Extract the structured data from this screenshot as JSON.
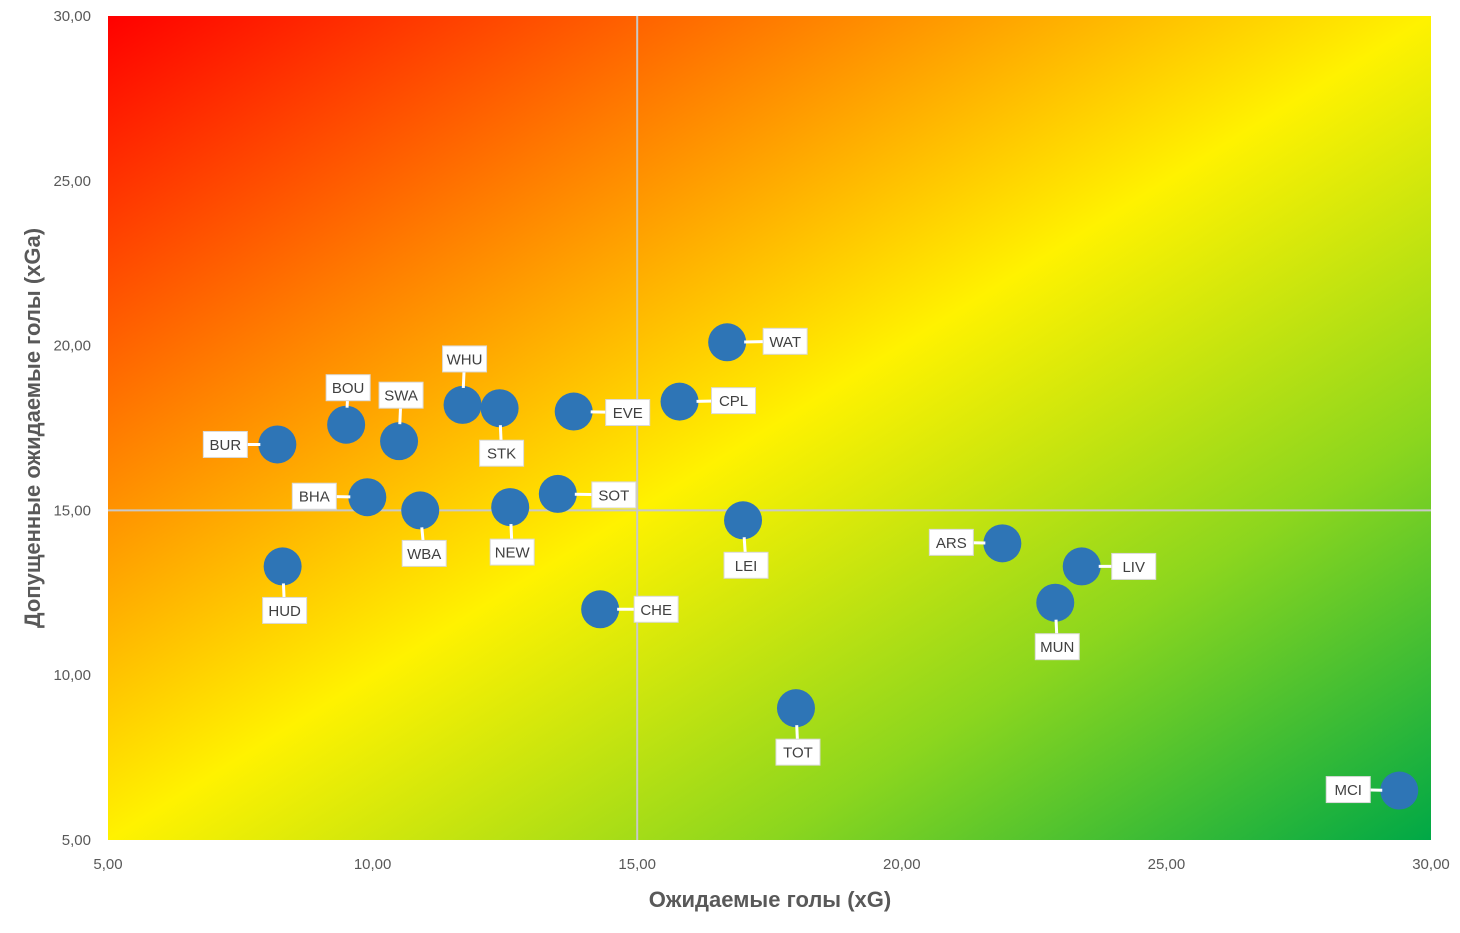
{
  "chart_data": {
    "type": "scatter",
    "xlabel": "Ожидаемые голы (xG)",
    "ylabel": "Допущенные ожидаемые голы (xGa)",
    "xlim": [
      5,
      30
    ],
    "ylim": [
      5,
      30
    ],
    "x_ticks": [
      "5,00",
      "10,00",
      "15,00",
      "20,00",
      "25,00",
      "30,00"
    ],
    "y_ticks": [
      "5,00",
      "10,00",
      "15,00",
      "20,00",
      "25,00",
      "30,00"
    ],
    "quadrant_lines": {
      "x": 15,
      "y": 15
    },
    "background": "diagonal gradient from red (top-left) through yellow to green (bottom-right)",
    "marker_color": "#2E75B6",
    "points": [
      {
        "label": "BUR",
        "x": 8.2,
        "y": 17.0
      },
      {
        "label": "BOU",
        "x": 9.5,
        "y": 17.6
      },
      {
        "label": "SWA",
        "x": 10.5,
        "y": 17.1
      },
      {
        "label": "WHU",
        "x": 11.7,
        "y": 18.2
      },
      {
        "label": "STK",
        "x": 12.4,
        "y": 18.1
      },
      {
        "label": "EVE",
        "x": 13.8,
        "y": 18.0
      },
      {
        "label": "CPL",
        "x": 15.8,
        "y": 18.3
      },
      {
        "label": "WAT",
        "x": 16.7,
        "y": 20.1
      },
      {
        "label": "BHA",
        "x": 9.9,
        "y": 15.4
      },
      {
        "label": "WBA",
        "x": 10.9,
        "y": 15.0
      },
      {
        "label": "NEW",
        "x": 12.6,
        "y": 15.1
      },
      {
        "label": "SOT",
        "x": 13.5,
        "y": 15.5
      },
      {
        "label": "HUD",
        "x": 8.3,
        "y": 13.3
      },
      {
        "label": "CHE",
        "x": 14.3,
        "y": 12.0
      },
      {
        "label": "LEI",
        "x": 17.0,
        "y": 14.7
      },
      {
        "label": "ARS",
        "x": 21.9,
        "y": 14.0
      },
      {
        "label": "LIV",
        "x": 23.4,
        "y": 13.3
      },
      {
        "label": "MUN",
        "x": 22.9,
        "y": 12.2
      },
      {
        "label": "TOT",
        "x": 18.0,
        "y": 9.0
      },
      {
        "label": "MCI",
        "x": 29.4,
        "y": 6.5
      }
    ]
  }
}
